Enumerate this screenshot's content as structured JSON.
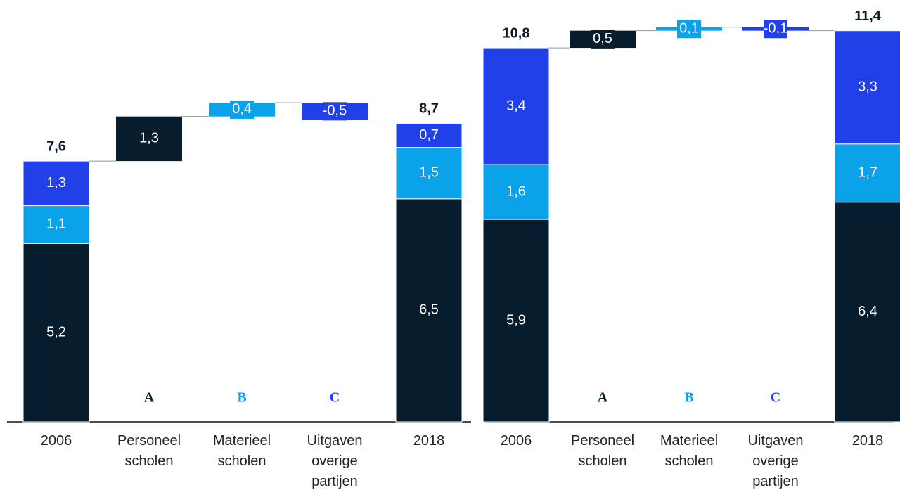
{
  "chart_data": [
    {
      "type": "waterfall",
      "categories": [
        "2006",
        "Personeel scholen",
        "Materieel scholen",
        "Uitgaven overige partijen",
        "2018"
      ],
      "measure": [
        "total",
        "relative",
        "relative",
        "relative",
        "total"
      ],
      "letters": [
        null,
        "A",
        "B",
        "C",
        null
      ],
      "series": [
        {
          "color": "#071c2c",
          "values": [
            5.2,
            1.3,
            null,
            null,
            6.5
          ],
          "value_labels": [
            "5,2",
            "1,3",
            null,
            null,
            "6,5"
          ]
        },
        {
          "color": "#0aa2e8",
          "values": [
            1.1,
            null,
            0.4,
            null,
            1.5
          ],
          "value_labels": [
            "1,1",
            null,
            "0,4",
            null,
            "1,5"
          ]
        },
        {
          "color": "#2140e8",
          "values": [
            1.3,
            null,
            null,
            -0.5,
            0.7
          ],
          "value_labels": [
            "1,3",
            null,
            null,
            "-0,5",
            "0,7"
          ]
        }
      ],
      "totals": [
        7.6,
        null,
        null,
        null,
        8.7
      ],
      "total_labels": [
        "7,6",
        null,
        null,
        null,
        "8,7"
      ]
    },
    {
      "type": "waterfall",
      "categories": [
        "2006",
        "Personeel scholen",
        "Materieel scholen",
        "Uitgaven overige partijen",
        "2018"
      ],
      "measure": [
        "total",
        "relative",
        "relative",
        "relative",
        "total"
      ],
      "letters": [
        null,
        "A",
        "B",
        "C",
        null
      ],
      "series": [
        {
          "color": "#071c2c",
          "values": [
            5.9,
            0.5,
            null,
            null,
            6.4
          ],
          "value_labels": [
            "5,9",
            "0,5",
            null,
            null,
            "6,4"
          ]
        },
        {
          "color": "#0aa2e8",
          "values": [
            1.6,
            null,
            0.1,
            null,
            1.7
          ],
          "value_labels": [
            "1,6",
            null,
            "0,1",
            null,
            "1,7"
          ]
        },
        {
          "color": "#2140e8",
          "values": [
            3.4,
            null,
            null,
            -0.1,
            3.3
          ],
          "value_labels": [
            "3,4",
            null,
            null,
            "-0,1",
            "3,3"
          ]
        }
      ],
      "totals": [
        10.8,
        null,
        null,
        null,
        11.4
      ],
      "total_labels": [
        "10,8",
        null,
        null,
        null,
        "11,4"
      ]
    }
  ]
}
